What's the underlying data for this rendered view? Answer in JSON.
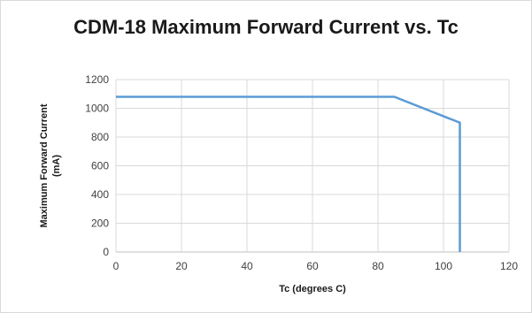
{
  "chart_data": {
    "type": "line",
    "title": "CDM-18 Maximum Forward Current vs. Tc",
    "xlabel": "Tc (degrees C)",
    "ylabel": "Maximum Forward Current (mA)",
    "xlim": [
      0,
      120
    ],
    "ylim": [
      0,
      1200
    ],
    "xticks": [
      0,
      20,
      40,
      60,
      80,
      100,
      120
    ],
    "yticks": [
      0,
      200,
      400,
      600,
      800,
      1000,
      1200
    ],
    "grid": true,
    "legend": "none",
    "series": [
      {
        "color": "#5b9bd5",
        "x": [
          0,
          85,
          105,
          105
        ],
        "y": [
          1080,
          1080,
          900,
          0
        ]
      }
    ]
  }
}
